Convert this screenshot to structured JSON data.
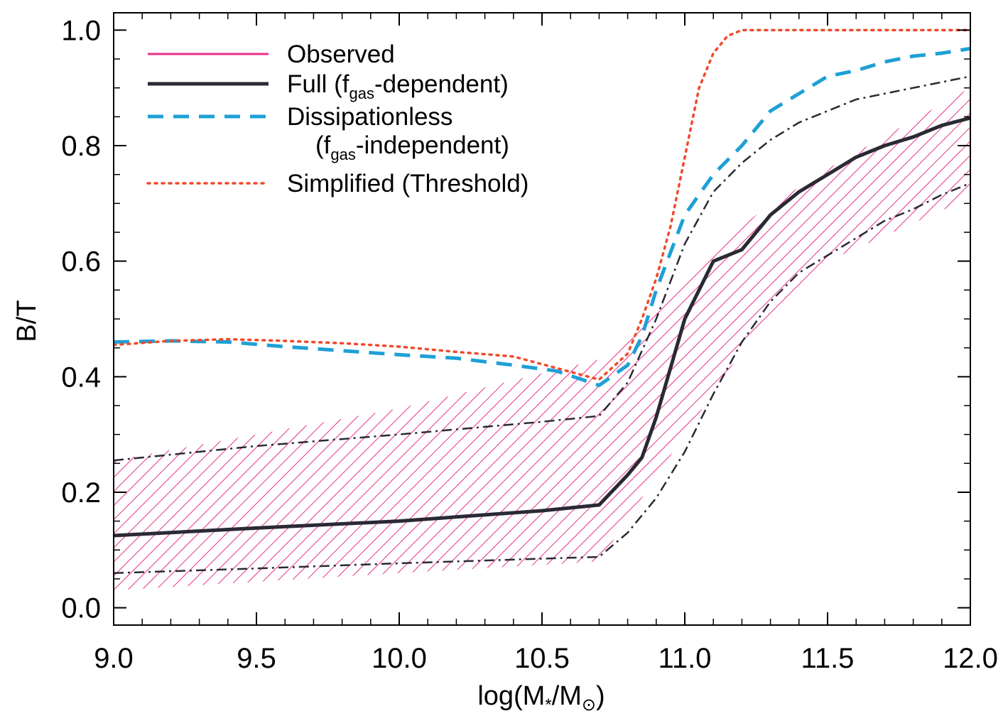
{
  "chart_data": {
    "type": "line",
    "xlabel": {
      "prefix": "log(M",
      "sub1": "*",
      "mid": "/M",
      "sub2": "⊙",
      "suffix": ")"
    },
    "ylabel": "B/T",
    "xlim": [
      9.0,
      12.0
    ],
    "ylim": [
      -0.03,
      1.03
    ],
    "xticks": [
      {
        "v": 9.0,
        "label": "9.0"
      },
      {
        "v": 9.5,
        "label": "9.5"
      },
      {
        "v": 10.0,
        "label": "10.0"
      },
      {
        "v": 10.5,
        "label": "10.5"
      },
      {
        "v": 11.0,
        "label": "11.0"
      },
      {
        "v": 11.5,
        "label": "11.5"
      },
      {
        "v": 12.0,
        "label": "12.0"
      }
    ],
    "yticks": [
      {
        "v": 0.0,
        "label": "0.0"
      },
      {
        "v": 0.2,
        "label": "0.2"
      },
      {
        "v": 0.4,
        "label": "0.4"
      },
      {
        "v": 0.6,
        "label": "0.6"
      },
      {
        "v": 0.8,
        "label": "0.8"
      },
      {
        "v": 1.0,
        "label": "1.0"
      }
    ],
    "x_minor_step": 0.1,
    "y_minor_step": 0.05,
    "observed_band": {
      "color": "#e8308a",
      "x": [
        9.0,
        10.0,
        10.7,
        11.0,
        11.25,
        11.5,
        12.0
      ],
      "upper": [
        0.255,
        0.345,
        0.43,
        0.58,
        0.68,
        0.76,
        0.9
      ],
      "lower": [
        0.03,
        0.06,
        0.08,
        0.3,
        0.48,
        0.6,
        0.71
      ]
    },
    "series": [
      {
        "name": "Observed",
        "color": "#e8308a",
        "style": "solid",
        "x": [],
        "y": []
      },
      {
        "name": "Full",
        "name_sub": "gas",
        "name_suffix": "-dependent)",
        "name_prefix": "Full (f",
        "color": "#2a2a35",
        "style": "solid",
        "x": [
          9.0,
          9.5,
          10.0,
          10.5,
          10.7,
          10.8,
          10.85,
          10.9,
          11.0,
          11.1,
          11.2,
          11.3,
          11.4,
          11.5,
          11.6,
          11.7,
          11.8,
          11.9,
          12.0
        ],
        "y": [
          0.125,
          0.138,
          0.15,
          0.168,
          0.178,
          0.23,
          0.26,
          0.33,
          0.5,
          0.6,
          0.62,
          0.68,
          0.72,
          0.75,
          0.78,
          0.8,
          0.815,
          0.835,
          0.848
        ]
      },
      {
        "name": "Full upper",
        "color": "#2a2a35",
        "style": "dashdot",
        "x": [
          9.0,
          9.5,
          10.0,
          10.5,
          10.7,
          10.8,
          10.9,
          11.0,
          11.1,
          11.2,
          11.3,
          11.4,
          11.5,
          11.6,
          11.7,
          11.8,
          11.9,
          12.0
        ],
        "y": [
          0.255,
          0.28,
          0.3,
          0.322,
          0.332,
          0.39,
          0.5,
          0.63,
          0.72,
          0.77,
          0.81,
          0.84,
          0.86,
          0.88,
          0.89,
          0.9,
          0.91,
          0.92
        ]
      },
      {
        "name": "Full lower",
        "color": "#2a2a35",
        "style": "dashdot",
        "x": [
          9.0,
          9.5,
          10.0,
          10.5,
          10.7,
          10.8,
          10.9,
          11.0,
          11.1,
          11.2,
          11.3,
          11.4,
          11.5,
          11.6,
          11.7,
          11.8,
          11.9,
          12.0
        ],
        "y": [
          0.06,
          0.068,
          0.077,
          0.085,
          0.088,
          0.13,
          0.19,
          0.27,
          0.37,
          0.46,
          0.53,
          0.58,
          0.61,
          0.64,
          0.67,
          0.69,
          0.715,
          0.735
        ]
      },
      {
        "name": "Dissipationless",
        "name_line2_prefix": "(f",
        "name_sub": "gas",
        "name_line2_suffix": "-independent)",
        "color": "#1ea0d6",
        "style": "dashed",
        "x": [
          9.0,
          9.2,
          9.4,
          9.6,
          9.8,
          10.0,
          10.2,
          10.4,
          10.55,
          10.7,
          10.8,
          10.85,
          10.9,
          11.0,
          11.1,
          11.2,
          11.3,
          11.4,
          11.5,
          11.6,
          11.7,
          11.8,
          11.9,
          12.0
        ],
        "y": [
          0.46,
          0.462,
          0.46,
          0.452,
          0.445,
          0.438,
          0.432,
          0.42,
          0.41,
          0.385,
          0.42,
          0.47,
          0.55,
          0.68,
          0.75,
          0.8,
          0.86,
          0.89,
          0.92,
          0.93,
          0.945,
          0.955,
          0.96,
          0.968
        ]
      },
      {
        "name": "Simplified (Threshold)",
        "color": "#f04a2c",
        "style": "dotted",
        "x": [
          9.0,
          9.2,
          9.4,
          9.6,
          9.8,
          10.0,
          10.2,
          10.4,
          10.55,
          10.7,
          10.8,
          10.85,
          10.9,
          10.95,
          11.0,
          11.05,
          11.1,
          11.15,
          11.2,
          11.3,
          11.6,
          12.0
        ],
        "y": [
          0.455,
          0.462,
          0.465,
          0.462,
          0.458,
          0.452,
          0.443,
          0.435,
          0.415,
          0.395,
          0.44,
          0.5,
          0.57,
          0.66,
          0.78,
          0.9,
          0.96,
          0.99,
          1.0,
          1.0,
          1.0,
          1.0
        ]
      }
    ],
    "legend": {
      "placement": "top-left"
    }
  }
}
